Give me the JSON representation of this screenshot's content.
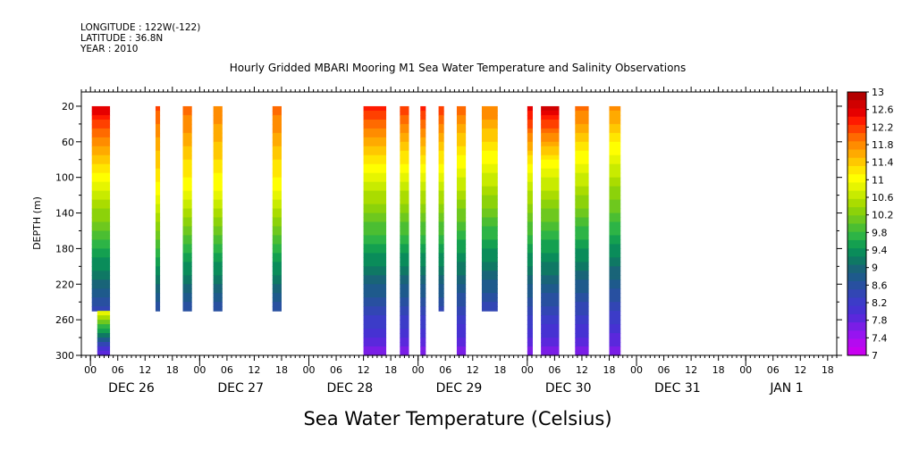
{
  "header": {
    "longitude": "LONGITUDE : 122W(-122)",
    "latitude": "LATITUDE : 36.8N",
    "year": "YEAR : 2010"
  },
  "chart_data": {
    "type": "heatmap",
    "title": "Hourly Gridded MBARI Mooring M1 Sea Water Temperature and Salinity Observations",
    "xlabel": "Sea Water Temperature (Celsius)",
    "ylabel": "DEPTH (m)",
    "x_unit": "hours since DEC 26 00",
    "xlim": [
      -2,
      164
    ],
    "ylim": [
      300,
      4
    ],
    "y_ticks": [
      20,
      60,
      100,
      140,
      180,
      220,
      260,
      300
    ],
    "x_hour_ticks": [
      0,
      6,
      12,
      18,
      24,
      30,
      36,
      42,
      48,
      54,
      60,
      66,
      72,
      78,
      84,
      90,
      96,
      102,
      108,
      114,
      120,
      126,
      132,
      138,
      144,
      150,
      156,
      162
    ],
    "x_hour_labels": [
      "00",
      "06",
      "12",
      "18",
      "00",
      "06",
      "12",
      "18",
      "00",
      "06",
      "12",
      "18",
      "00",
      "06",
      "12",
      "18",
      "00",
      "06",
      "12",
      "18",
      "00",
      "06",
      "12",
      "18",
      "00",
      "06",
      "12",
      "18"
    ],
    "day_labels": [
      {
        "label": "DEC 26",
        "hour": 9
      },
      {
        "label": "DEC 27",
        "hour": 33
      },
      {
        "label": "DEC 28",
        "hour": 57
      },
      {
        "label": "DEC 29",
        "hour": 81
      },
      {
        "label": "DEC 30",
        "hour": 105
      },
      {
        "label": "DEC 31",
        "hour": 129
      },
      {
        "label": "JAN  1",
        "hour": 153
      }
    ],
    "colorbar": {
      "min": 7,
      "max": 13,
      "labels": [
        "13",
        "12.6",
        "12.2",
        "11.8",
        "11.4",
        "11",
        "10.6",
        "10.2",
        "9.8",
        "9.4",
        "9",
        "8.6",
        "8.2",
        "7.8",
        "7.4",
        "7"
      ],
      "label_values": [
        13,
        12.6,
        12.2,
        11.8,
        11.4,
        11,
        10.6,
        10.2,
        9.8,
        9.4,
        9,
        8.6,
        8.2,
        7.8,
        7.4,
        7
      ],
      "colors": [
        "#b30000",
        "#d00000",
        "#e60000",
        "#ff1a00",
        "#ff4000",
        "#ff6a00",
        "#ff8c00",
        "#ffaa00",
        "#ffc800",
        "#ffe600",
        "#ffff00",
        "#e6f500",
        "#c8eb00",
        "#aadc00",
        "#8cd20a",
        "#6ec81e",
        "#4bbe32",
        "#2db446",
        "#14a050",
        "#0a8c5a",
        "#0f7864",
        "#196478",
        "#1e5a8c",
        "#2850a0",
        "#3246b4",
        "#3c3cc8",
        "#4632d2",
        "#5a28dc",
        "#7a1ee6",
        "#9614f0",
        "#b40af0",
        "#c800f0"
      ]
    },
    "segments": [
      {
        "start": 0.3,
        "end": 4.3,
        "surface": 12.6,
        "warm_depth": 100,
        "bottom_depth": 250
      },
      {
        "start": 1.5,
        "end": 4.3,
        "surface": 7.6,
        "warm_depth": 250,
        "bottom_depth": 300
      },
      {
        "start": 14.3,
        "end": 15.3,
        "surface": 12.1,
        "warm_depth": 115,
        "bottom_depth": 250
      },
      {
        "start": 20.3,
        "end": 22.3,
        "surface": 12.0,
        "warm_depth": 110,
        "bottom_depth": 250
      },
      {
        "start": 27.0,
        "end": 29.0,
        "surface": 11.9,
        "warm_depth": 110,
        "bottom_depth": 250
      },
      {
        "start": 40.0,
        "end": 42.0,
        "surface": 12.0,
        "warm_depth": 110,
        "bottom_depth": 250
      },
      {
        "start": 60.0,
        "end": 65.0,
        "surface": 12.4,
        "warm_depth": 90,
        "bottom_depth": 300
      },
      {
        "start": 68.0,
        "end": 70.0,
        "surface": 12.2,
        "warm_depth": 90,
        "bottom_depth": 300
      },
      {
        "start": 72.5,
        "end": 73.7,
        "surface": 12.3,
        "warm_depth": 90,
        "bottom_depth": 300
      },
      {
        "start": 76.5,
        "end": 77.7,
        "surface": 12.2,
        "warm_depth": 90,
        "bottom_depth": 250
      },
      {
        "start": 80.5,
        "end": 82.5,
        "surface": 12.0,
        "warm_depth": 85,
        "bottom_depth": 300
      },
      {
        "start": 86.0,
        "end": 89.5,
        "surface": 11.9,
        "warm_depth": 80,
        "bottom_depth": 250
      },
      {
        "start": 96.0,
        "end": 97.2,
        "surface": 12.6,
        "warm_depth": 90,
        "bottom_depth": 300
      },
      {
        "start": 99.0,
        "end": 103.0,
        "surface": 12.7,
        "warm_depth": 85,
        "bottom_depth": 300
      },
      {
        "start": 106.5,
        "end": 109.5,
        "surface": 12.0,
        "warm_depth": 80,
        "bottom_depth": 300
      },
      {
        "start": 114.0,
        "end": 116.5,
        "surface": 11.8,
        "warm_depth": 70,
        "bottom_depth": 300
      }
    ]
  }
}
